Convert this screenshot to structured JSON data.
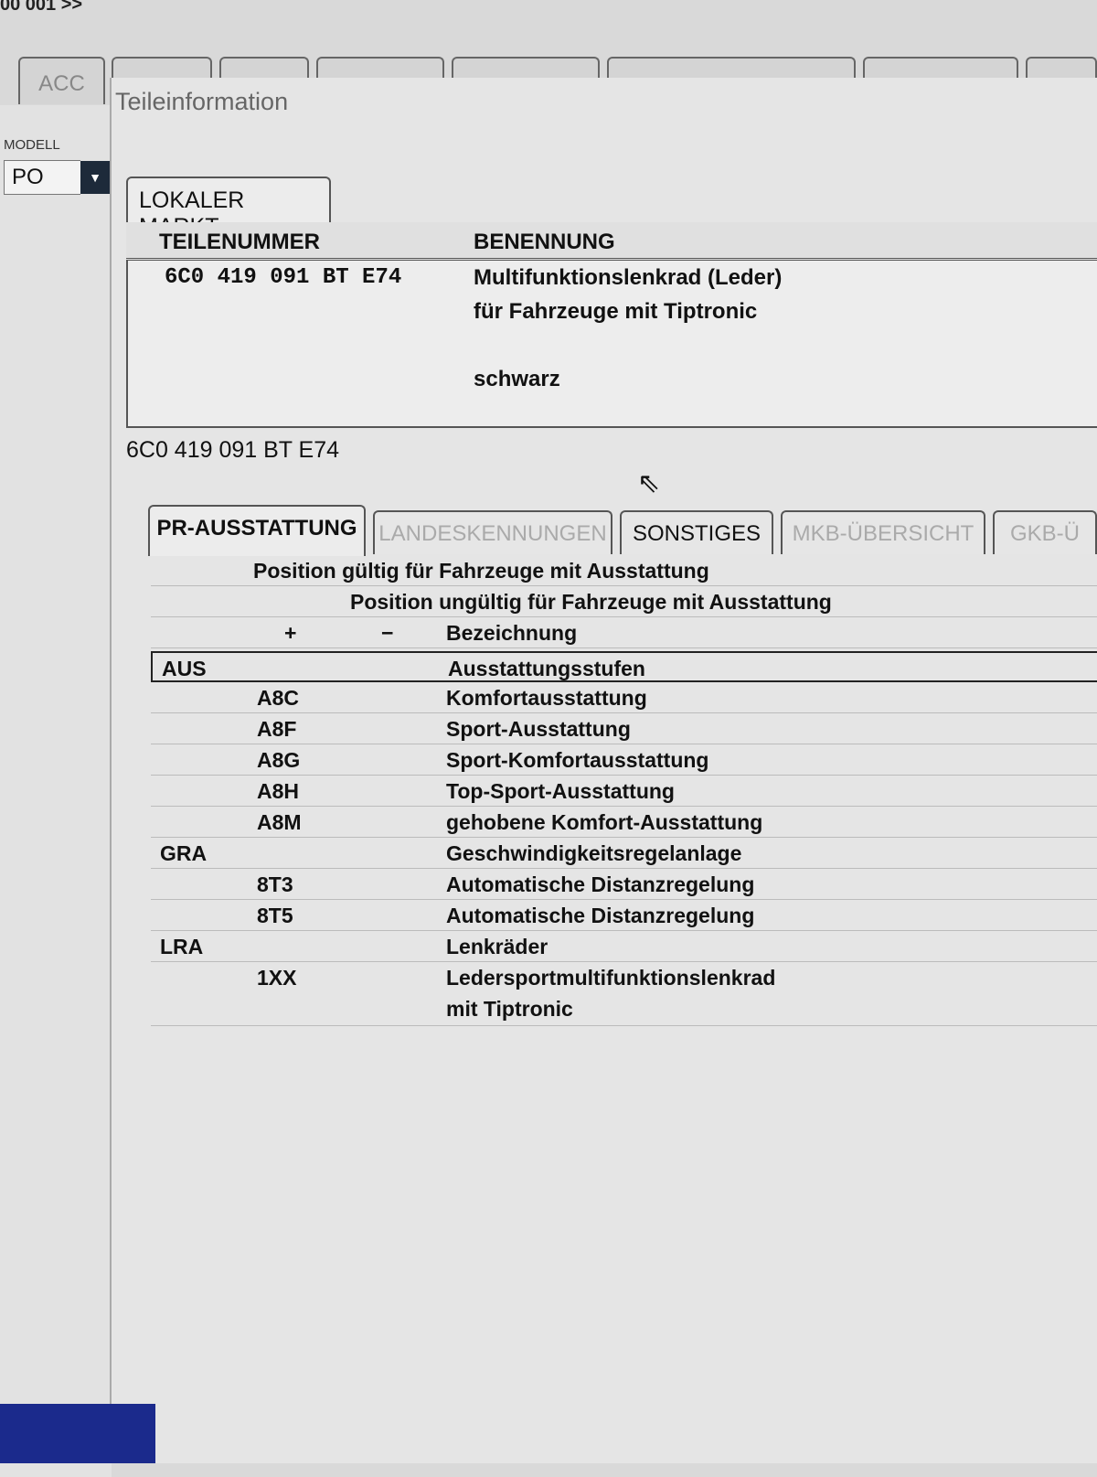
{
  "top": {
    "text": "00 001 >>"
  },
  "bg_tabs": [
    "ACC"
  ],
  "left": {
    "modell_label": "MODELL",
    "modell_value": "PO"
  },
  "dialog": {
    "title": "Teileinformation",
    "local_tab": "LOKALER MARKT",
    "headers": {
      "teilenummer": "TEILENUMMER",
      "benennung": "BENENNUNG"
    },
    "part": {
      "number": "6C0  419  091  BT  E74",
      "lines": [
        "Multifunktionslenkrad (Leder)",
        "für Fahrzeuge mit Tiptronic",
        "",
        "schwarz"
      ]
    },
    "part_number": "6C0 419 091 BT E74",
    "tabs": [
      {
        "label": "PR-AUSSTATTUNG",
        "state": "active"
      },
      {
        "label": "LANDESKENNUNGEN",
        "state": "disabled"
      },
      {
        "label": "SONSTIGES",
        "state": "enabled"
      },
      {
        "label": "MKB-ÜBERSICHT",
        "state": "disabled"
      },
      {
        "label": "GKB-Ü",
        "state": "disabled"
      }
    ],
    "pr": {
      "valid": "Position gültig für Fahrzeuge mit Ausstattung",
      "invalid": "Position ungültig für Fahrzeuge mit Ausstattung",
      "plus": "+",
      "minus": "−",
      "bezeichnung": "Bezeichnung",
      "rows": [
        {
          "family": "AUS",
          "code": "",
          "desc": "Ausstattungsstufen"
        },
        {
          "family": "",
          "code": "A8C",
          "desc": "Komfortausstattung"
        },
        {
          "family": "",
          "code": "A8F",
          "desc": "Sport-Ausstattung"
        },
        {
          "family": "",
          "code": "A8G",
          "desc": "Sport-Komfortausstattung"
        },
        {
          "family": "",
          "code": "A8H",
          "desc": "Top-Sport-Ausstattung"
        },
        {
          "family": "",
          "code": "A8M",
          "desc": "gehobene Komfort-Ausstattung"
        },
        {
          "family": "GRA",
          "code": "",
          "desc": "Geschwindigkeitsregelanlage"
        },
        {
          "family": "",
          "code": "8T3",
          "desc": "Automatische Distanzregelung"
        },
        {
          "family": "",
          "code": "8T5",
          "desc": "Automatische Distanzregelung"
        },
        {
          "family": "LRA",
          "code": "",
          "desc": "Lenkräder"
        },
        {
          "family": "",
          "code": "1XX",
          "desc": "Ledersportmultifunktionslenkrad",
          "desc2": "mit Tiptronic"
        }
      ]
    }
  }
}
